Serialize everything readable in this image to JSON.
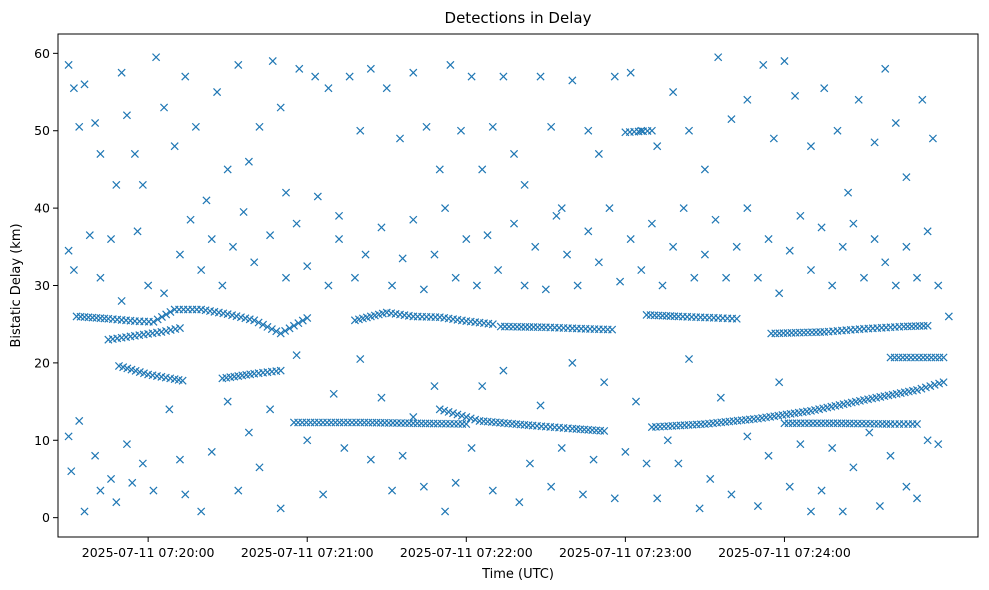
{
  "chart_data": {
    "type": "scatter",
    "title": "Detections in Delay",
    "xlabel": "Time (UTC)",
    "ylabel": "Bistatic Delay (km)",
    "x_unit": "seconds after 2025-07-11 07:20:00 UTC",
    "xlim": [
      -34,
      313
    ],
    "ylim": [
      -2.5,
      62.5
    ],
    "marker": "x",
    "color": "#1f77b4",
    "x_ticks": [
      {
        "value": 0,
        "label": "2025-07-11 07:20:00"
      },
      {
        "value": 60,
        "label": "2025-07-11 07:21:00"
      },
      {
        "value": 120,
        "label": "2025-07-11 07:22:00"
      },
      {
        "value": 180,
        "label": "2025-07-11 07:23:00"
      },
      {
        "value": 240,
        "label": "2025-07-11 07:24:00"
      }
    ],
    "y_ticks": [
      0,
      10,
      20,
      30,
      40,
      50,
      60
    ],
    "tracks": [
      {
        "x": [
          -27,
          -15,
          -5,
          2,
          10,
          20,
          30,
          40,
          50,
          60
        ],
        "y": [
          26,
          25.7,
          25.4,
          25.3,
          26.9,
          26.9,
          26.3,
          25.5,
          23.8,
          25.8
        ]
      },
      {
        "x": [
          78,
          90,
          100,
          110,
          120,
          130
        ],
        "y": [
          25.5,
          26.5,
          26,
          25.9,
          25.4,
          25
        ]
      },
      {
        "x": [
          133,
          150,
          165,
          175
        ],
        "y": [
          24.7,
          24.6,
          24.4,
          24.3
        ]
      },
      {
        "x": [
          188,
          200,
          215,
          222
        ],
        "y": [
          26.2,
          26,
          25.8,
          25.7
        ]
      },
      {
        "x": [
          235,
          255,
          270,
          285,
          294
        ],
        "y": [
          23.8,
          24,
          24.4,
          24.7,
          24.8
        ]
      },
      {
        "x": [
          -11,
          0,
          10,
          13
        ],
        "y": [
          19.6,
          18.5,
          17.9,
          17.7
        ]
      },
      {
        "x": [
          -15,
          -5,
          5,
          12
        ],
        "y": [
          23,
          23.5,
          24,
          24.5
        ]
      },
      {
        "x": [
          28,
          40,
          50
        ],
        "y": [
          18,
          18.6,
          19
        ]
      },
      {
        "x": [
          110,
          125,
          145,
          160,
          172
        ],
        "y": [
          14,
          12.5,
          11.9,
          11.5,
          11.2
        ]
      },
      {
        "x": [
          190,
          210,
          230,
          250,
          270,
          290,
          300
        ],
        "y": [
          11.7,
          12.1,
          12.8,
          13.8,
          15.2,
          16.5,
          17.5
        ]
      },
      {
        "x": [
          55,
          80,
          100,
          120
        ],
        "y": [
          12.3,
          12.3,
          12.2,
          12.1
        ]
      },
      {
        "x": [
          240,
          260,
          280,
          290
        ],
        "y": [
          12.2,
          12.2,
          12.1,
          12.1
        ]
      },
      {
        "x": [
          180,
          190
        ],
        "y": [
          49.8,
          50
        ]
      },
      {
        "x": [
          280,
          300
        ],
        "y": [
          20.7,
          20.7
        ]
      }
    ],
    "scatter_sample": [
      [
        -30,
        58.5
      ],
      [
        -28,
        55.5
      ],
      [
        -26,
        50.5
      ],
      [
        -24,
        56
      ],
      [
        -20,
        51
      ],
      [
        -18,
        47
      ],
      [
        -12,
        43
      ],
      [
        -10,
        57.5
      ],
      [
        -8,
        52
      ],
      [
        -5,
        47
      ],
      [
        -2,
        43
      ],
      [
        3,
        59.5
      ],
      [
        6,
        53
      ],
      [
        10,
        48
      ],
      [
        14,
        57
      ],
      [
        18,
        50.5
      ],
      [
        22,
        41
      ],
      [
        26,
        55
      ],
      [
        30,
        45
      ],
      [
        34,
        58.5
      ],
      [
        38,
        46
      ],
      [
        42,
        50.5
      ],
      [
        47,
        59
      ],
      [
        50,
        53
      ],
      [
        52,
        42
      ],
      [
        57,
        58
      ],
      [
        63,
        57
      ],
      [
        68,
        55.5
      ],
      [
        72,
        39
      ],
      [
        76,
        57
      ],
      [
        80,
        50
      ],
      [
        84,
        58
      ],
      [
        90,
        55.5
      ],
      [
        95,
        49
      ],
      [
        100,
        57.5
      ],
      [
        105,
        50.5
      ],
      [
        110,
        45
      ],
      [
        114,
        58.5
      ],
      [
        118,
        50
      ],
      [
        122,
        57
      ],
      [
        126,
        45
      ],
      [
        130,
        50.5
      ],
      [
        134,
        57
      ],
      [
        138,
        47
      ],
      [
        142,
        43
      ],
      [
        148,
        57
      ],
      [
        152,
        50.5
      ],
      [
        156,
        40
      ],
      [
        160,
        56.5
      ],
      [
        166,
        50
      ],
      [
        170,
        47
      ],
      [
        176,
        57
      ],
      [
        182,
        57.5
      ],
      [
        186,
        50
      ],
      [
        192,
        48
      ],
      [
        198,
        55
      ],
      [
        204,
        50
      ],
      [
        210,
        45
      ],
      [
        215,
        59.5
      ],
      [
        220,
        51.5
      ],
      [
        226,
        54
      ],
      [
        232,
        58.5
      ],
      [
        236,
        49
      ],
      [
        240,
        59
      ],
      [
        244,
        54.5
      ],
      [
        250,
        48
      ],
      [
        255,
        55.5
      ],
      [
        260,
        50
      ],
      [
        264,
        42
      ],
      [
        268,
        54
      ],
      [
        274,
        48.5
      ],
      [
        278,
        58
      ],
      [
        282,
        51
      ],
      [
        286,
        44
      ],
      [
        292,
        54
      ],
      [
        296,
        49
      ],
      [
        -30,
        34.5
      ],
      [
        -28,
        32
      ],
      [
        -22,
        36.5
      ],
      [
        -18,
        31
      ],
      [
        -14,
        36
      ],
      [
        -10,
        28
      ],
      [
        -4,
        37
      ],
      [
        0,
        30
      ],
      [
        6,
        29
      ],
      [
        12,
        34
      ],
      [
        16,
        38.5
      ],
      [
        20,
        32
      ],
      [
        24,
        36
      ],
      [
        28,
        30
      ],
      [
        32,
        35
      ],
      [
        36,
        39.5
      ],
      [
        40,
        33
      ],
      [
        46,
        36.5
      ],
      [
        52,
        31
      ],
      [
        56,
        38
      ],
      [
        60,
        32.5
      ],
      [
        64,
        41.5
      ],
      [
        68,
        30
      ],
      [
        72,
        36
      ],
      [
        78,
        31
      ],
      [
        82,
        34
      ],
      [
        88,
        37.5
      ],
      [
        92,
        30
      ],
      [
        96,
        33.5
      ],
      [
        100,
        38.5
      ],
      [
        104,
        29.5
      ],
      [
        108,
        34
      ],
      [
        112,
        40
      ],
      [
        116,
        31
      ],
      [
        120,
        36
      ],
      [
        124,
        30
      ],
      [
        128,
        36.5
      ],
      [
        132,
        32
      ],
      [
        138,
        38
      ],
      [
        142,
        30
      ],
      [
        146,
        35
      ],
      [
        150,
        29.5
      ],
      [
        154,
        39
      ],
      [
        158,
        34
      ],
      [
        162,
        30
      ],
      [
        166,
        37
      ],
      [
        170,
        33
      ],
      [
        174,
        40
      ],
      [
        178,
        30.5
      ],
      [
        182,
        36
      ],
      [
        186,
        32
      ],
      [
        190,
        38
      ],
      [
        194,
        30
      ],
      [
        198,
        35
      ],
      [
        202,
        40
      ],
      [
        206,
        31
      ],
      [
        210,
        34
      ],
      [
        214,
        38.5
      ],
      [
        218,
        31
      ],
      [
        222,
        35
      ],
      [
        226,
        40
      ],
      [
        230,
        31
      ],
      [
        234,
        36
      ],
      [
        238,
        29
      ],
      [
        242,
        34.5
      ],
      [
        246,
        39
      ],
      [
        250,
        32
      ],
      [
        254,
        37.5
      ],
      [
        258,
        30
      ],
      [
        262,
        35
      ],
      [
        266,
        38
      ],
      [
        270,
        31
      ],
      [
        274,
        36
      ],
      [
        278,
        33
      ],
      [
        282,
        30
      ],
      [
        286,
        35
      ],
      [
        290,
        31
      ],
      [
        294,
        37
      ],
      [
        298,
        30
      ],
      [
        302,
        26
      ],
      [
        -30,
        10.5
      ],
      [
        -29,
        6
      ],
      [
        -26,
        12.5
      ],
      [
        -24,
        0.8
      ],
      [
        -20,
        8
      ],
      [
        -18,
        3.5
      ],
      [
        -14,
        5
      ],
      [
        -12,
        2
      ],
      [
        -8,
        9.5
      ],
      [
        -6,
        4.5
      ],
      [
        -2,
        7
      ],
      [
        2,
        3.5
      ],
      [
        8,
        14
      ],
      [
        12,
        7.5
      ],
      [
        14,
        3
      ],
      [
        20,
        0.8
      ],
      [
        24,
        8.5
      ],
      [
        30,
        15
      ],
      [
        34,
        3.5
      ],
      [
        38,
        11
      ],
      [
        42,
        6.5
      ],
      [
        46,
        14
      ],
      [
        50,
        1.2
      ],
      [
        56,
        21
      ],
      [
        60,
        10
      ],
      [
        66,
        3
      ],
      [
        70,
        16
      ],
      [
        74,
        9
      ],
      [
        80,
        20.5
      ],
      [
        84,
        7.5
      ],
      [
        88,
        15.5
      ],
      [
        92,
        3.5
      ],
      [
        96,
        8
      ],
      [
        100,
        13
      ],
      [
        104,
        4
      ],
      [
        108,
        17
      ],
      [
        112,
        0.8
      ],
      [
        116,
        4.5
      ],
      [
        122,
        9
      ],
      [
        126,
        17
      ],
      [
        130,
        3.5
      ],
      [
        134,
        19
      ],
      [
        140,
        2
      ],
      [
        144,
        7
      ],
      [
        148,
        14.5
      ],
      [
        152,
        4
      ],
      [
        156,
        9
      ],
      [
        160,
        20
      ],
      [
        164,
        3
      ],
      [
        168,
        7.5
      ],
      [
        172,
        17.5
      ],
      [
        176,
        2.5
      ],
      [
        180,
        8.5
      ],
      [
        184,
        15
      ],
      [
        188,
        7
      ],
      [
        192,
        2.5
      ],
      [
        196,
        10
      ],
      [
        200,
        7
      ],
      [
        204,
        20.5
      ],
      [
        208,
        1.2
      ],
      [
        212,
        5
      ],
      [
        216,
        15.5
      ],
      [
        220,
        3
      ],
      [
        226,
        10.5
      ],
      [
        230,
        1.5
      ],
      [
        234,
        8
      ],
      [
        238,
        17.5
      ],
      [
        242,
        4
      ],
      [
        246,
        9.5
      ],
      [
        250,
        0.8
      ],
      [
        254,
        3.5
      ],
      [
        258,
        9
      ],
      [
        262,
        0.8
      ],
      [
        266,
        6.5
      ],
      [
        272,
        11
      ],
      [
        276,
        1.5
      ],
      [
        280,
        8
      ],
      [
        286,
        4
      ],
      [
        290,
        2.5
      ],
      [
        294,
        10
      ],
      [
        298,
        9.5
      ]
    ]
  }
}
